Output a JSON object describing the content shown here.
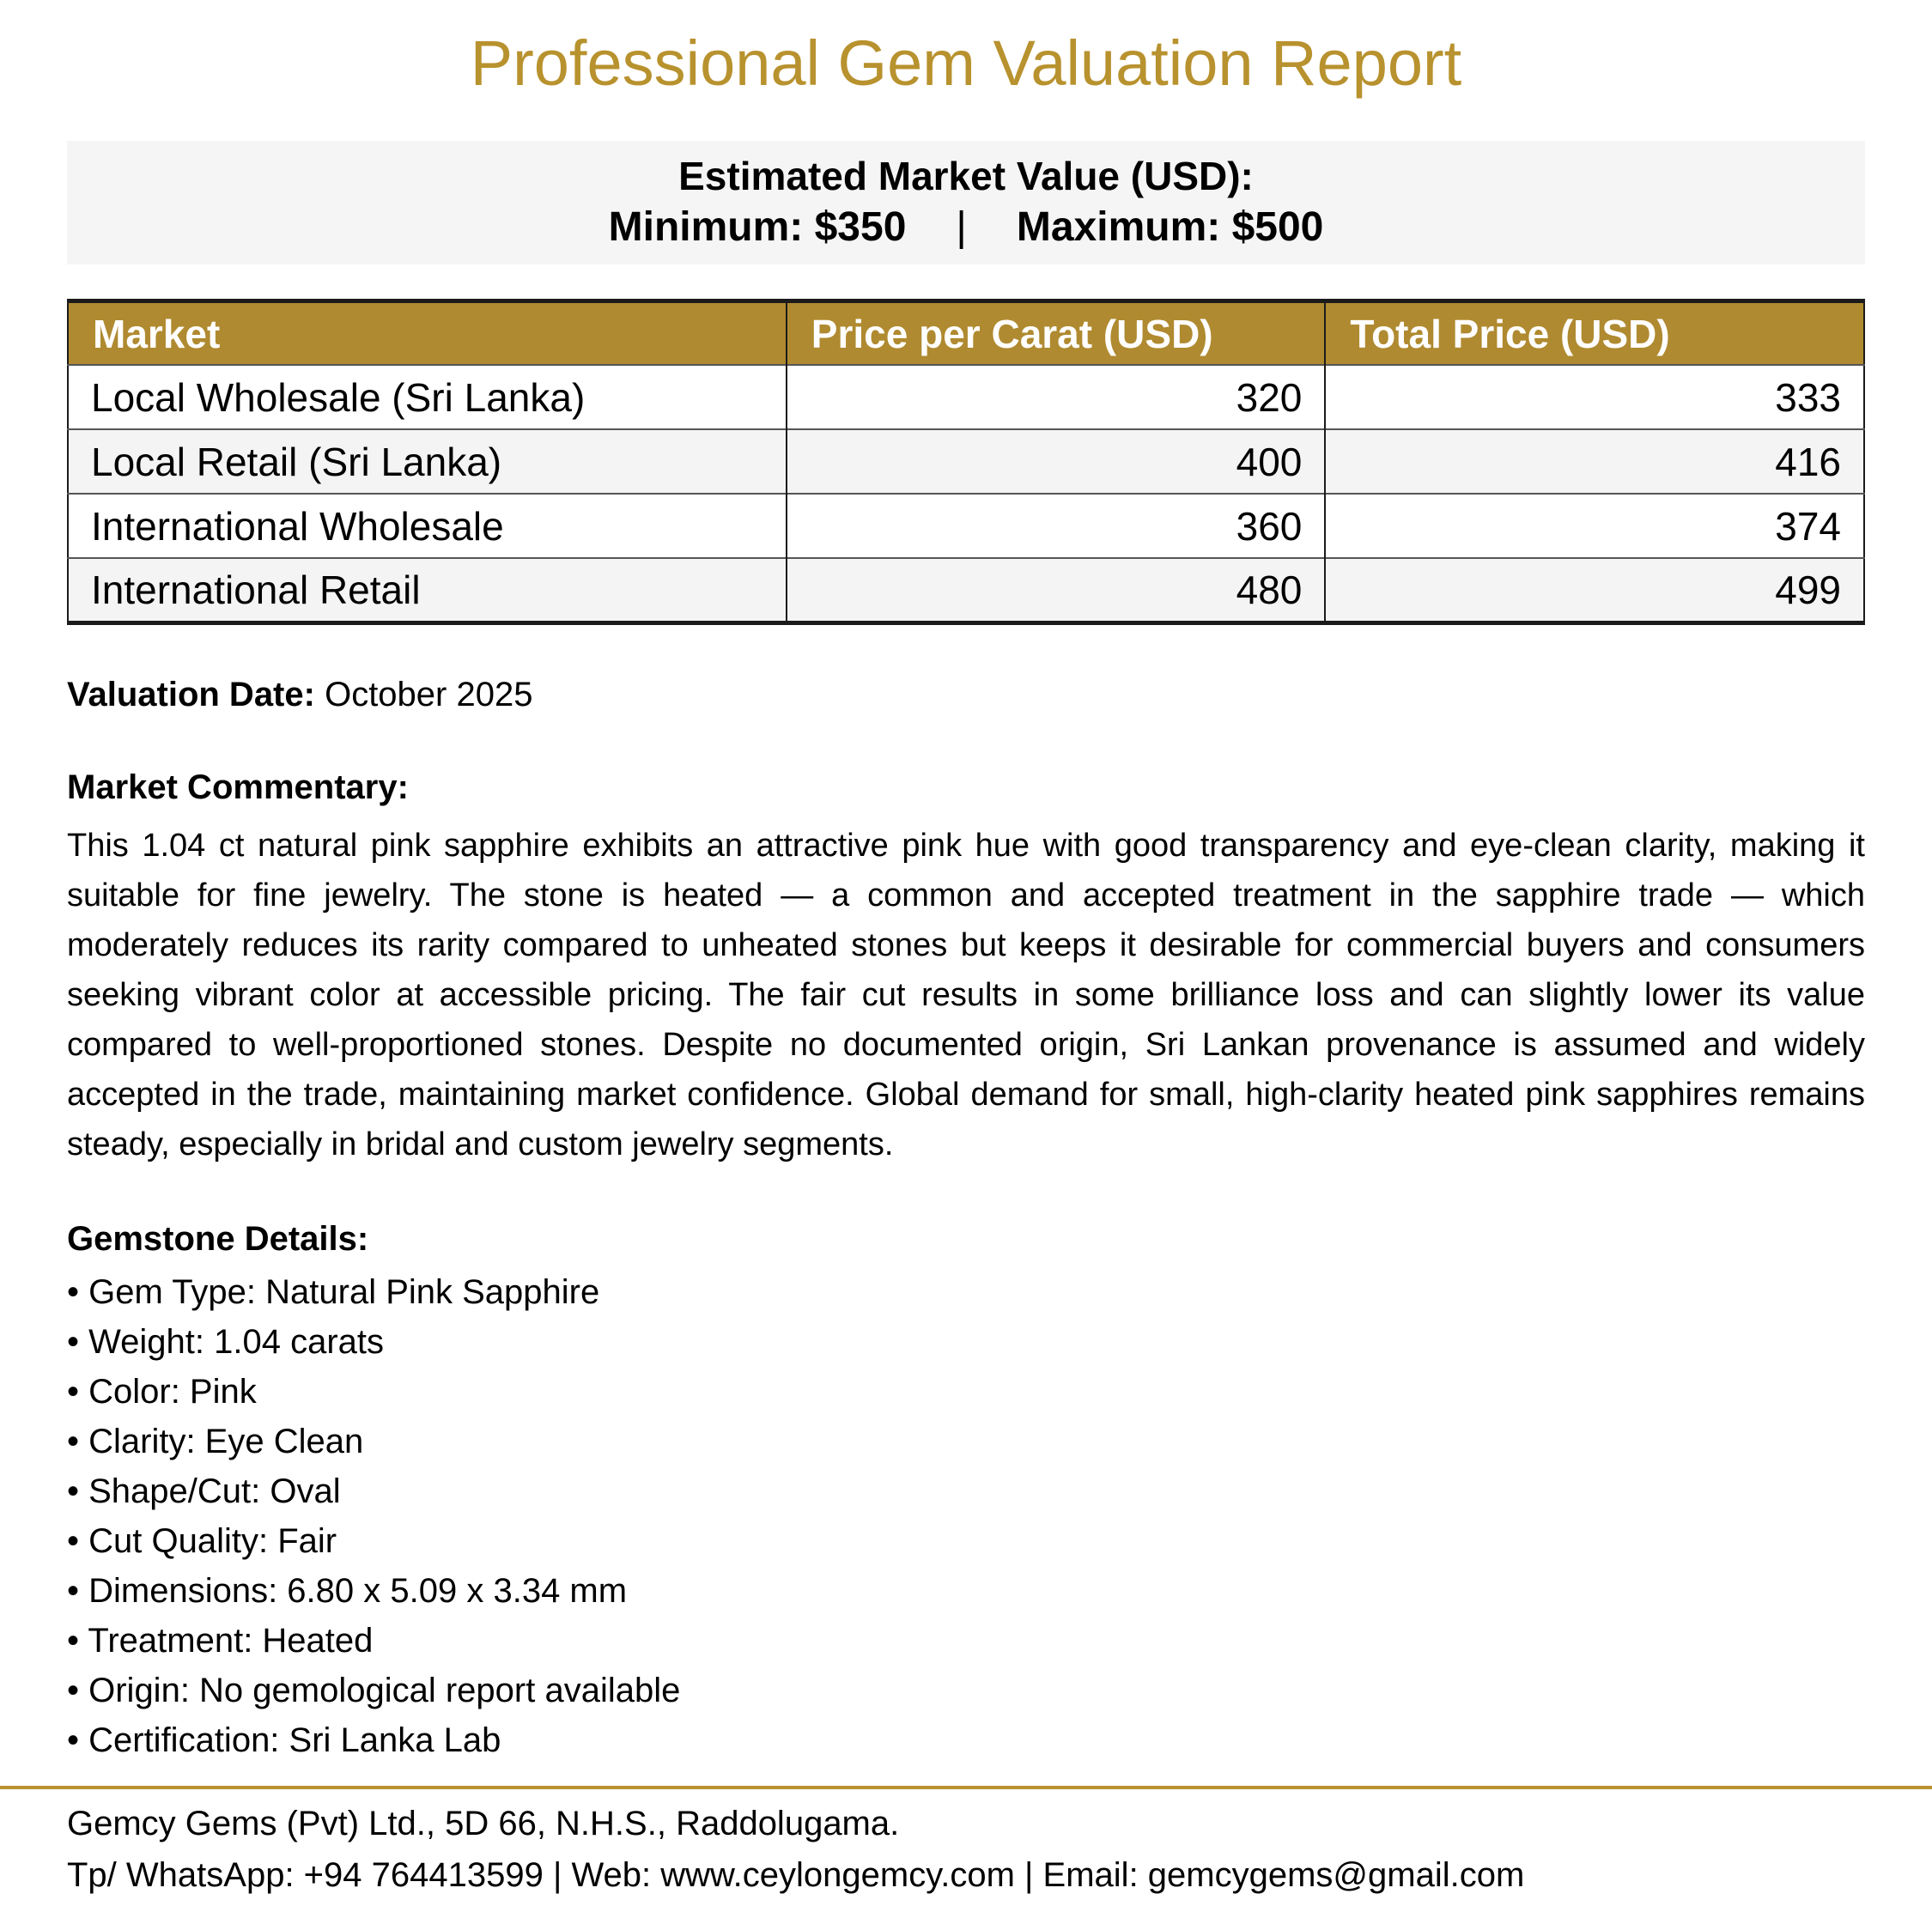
{
  "page": {
    "title": "Professional Gem Valuation Report"
  },
  "estimate_box": {
    "heading": "Estimated Market Value (USD):",
    "min_label": "Minimum: $350",
    "separator": "|",
    "max_label": "Maximum: $500"
  },
  "market_table": {
    "columns": [
      "Market",
      "Price per Carat (USD)",
      "Total Price (USD)"
    ],
    "rows": [
      {
        "market": "Local Wholesale (Sri Lanka)",
        "price_per_carat": "320",
        "total_price": "333"
      },
      {
        "market": "Local Retail (Sri Lanka)",
        "price_per_carat": "400",
        "total_price": "416"
      },
      {
        "market": "International Wholesale",
        "price_per_carat": "360",
        "total_price": "374"
      },
      {
        "market": "International Retail",
        "price_per_carat": "480",
        "total_price": "499"
      }
    ]
  },
  "valuation": {
    "label": "Valuation Date:",
    "value": "October 2025"
  },
  "commentary": {
    "heading": "Market Commentary:",
    "body": "This 1.04 ct natural pink sapphire exhibits an attractive pink hue with good transparency and eye-clean clarity, making it suitable for fine jewelry. The stone is heated — a common and accepted treatment in the sapphire trade — which moderately reduces its rarity compared to unheated stones but keeps it desirable for commercial buyers and consumers seeking vibrant color at accessible pricing. The fair cut results in some brilliance loss and can slightly lower its value compared to well-proportioned stones. Despite no documented origin, Sri Lankan provenance is assumed and widely accepted in the trade, maintaining market confidence. Global demand for small, high-clarity heated pink sapphires remains steady, especially in bridal and custom jewelry segments."
  },
  "details": {
    "heading": "Gemstone Details:",
    "bullet": "•",
    "items": [
      "Gem Type: Natural Pink Sapphire",
      "Weight: 1.04 carats",
      "Color: Pink",
      "Clarity: Eye Clean",
      "Shape/Cut: Oval",
      "Cut Quality: Fair",
      "Dimensions: 6.80 x 5.09 x 3.34 mm",
      "Treatment: Heated",
      "Origin: No gemological report available",
      "Certification: Sri Lanka Lab"
    ]
  },
  "footer": {
    "address": "Gemcy Gems (Pvt) Ltd., 5D 66, N.H.S., Raddolugama.",
    "contact": "Tp/ WhatsApp: +94 764413599 | Web: www.ceylongemcy.com | Email: gemcygems@gmail.com"
  },
  "colors": {
    "gold": "#B8922E",
    "table_header_bg": "#B08A30",
    "box_bg": "#F5F5F5",
    "row_alt_bg": "#F4F4F4",
    "border_dark": "#1B1B1B",
    "row_border": "#555555"
  }
}
